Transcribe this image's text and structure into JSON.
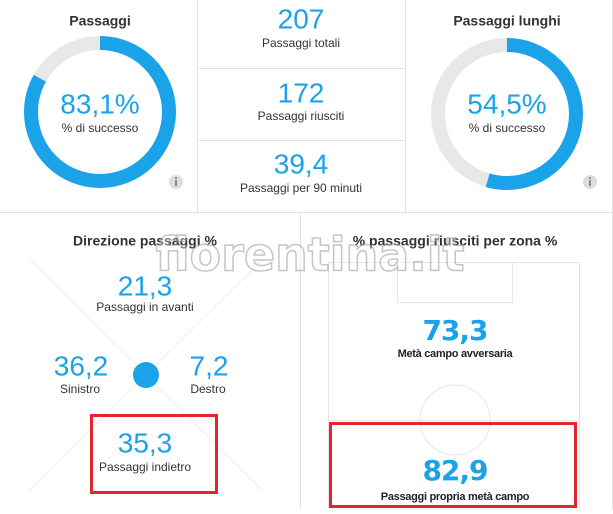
{
  "passes": {
    "title": "Passaggi",
    "success": {
      "value": 83.1,
      "label": "83,1%"
    },
    "success_label": "% di successo"
  },
  "totals": [
    {
      "value": "207",
      "label": "Passaggi totali"
    },
    {
      "value": "172",
      "label": "Passaggi riusciti"
    },
    {
      "value": "39,4",
      "label": "Passaggi per 90 minuti"
    }
  ],
  "long_passes": {
    "title": "Passaggi lunghi",
    "success": {
      "value": 54.5,
      "label": "54,5%"
    },
    "success_label": "% di successo"
  },
  "direction": {
    "title": "Direzione passaggi %",
    "forward": {
      "value": "21,3",
      "label": "Passaggi in avanti"
    },
    "left": {
      "value": "36,2",
      "label": "Sinistro"
    },
    "right": {
      "value": "7,2",
      "label": "Destro"
    },
    "backward": {
      "value": "35,3",
      "label": "Passaggi indietro"
    }
  },
  "zones": {
    "title": "% passaggi riusciti per zona %",
    "opponent_half": {
      "value": "73,3",
      "label": "Metà campo avversaria"
    },
    "own_half": {
      "value": "82,9",
      "label": "Passaggi propria metà campo"
    }
  },
  "watermark": "fiorentina.it"
}
